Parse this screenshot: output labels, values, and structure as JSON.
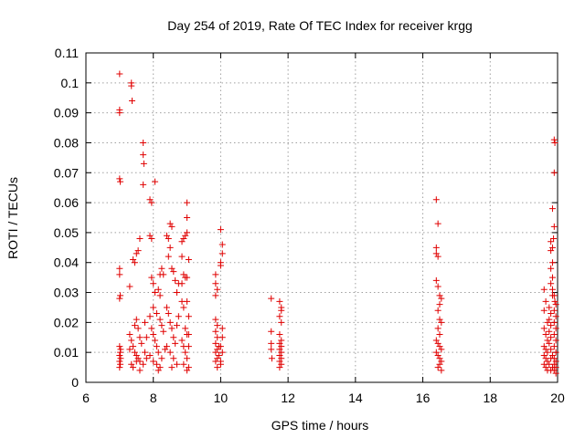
{
  "chart_data": {
    "type": "scatter",
    "title": "Day 254 of 2019, Rate Of TEC Index for receiver krgg",
    "xlabel": "GPS time / hours",
    "ylabel": "ROTI / TECUs",
    "xlim": [
      6,
      20
    ],
    "ylim": [
      0,
      0.11
    ],
    "xticks": [
      6,
      8,
      10,
      12,
      14,
      16,
      18,
      20
    ],
    "yticks": [
      0,
      0.01,
      0.02,
      0.03,
      0.04,
      0.05,
      0.06,
      0.07,
      0.08,
      0.09,
      0.1,
      0.11
    ],
    "grid": true,
    "marker": "+",
    "color": "#e00000",
    "series": [
      {
        "name": "ROTI",
        "points": [
          [
            7.0,
            0.103
          ],
          [
            7.0,
            0.091
          ],
          [
            7.0,
            0.09
          ],
          [
            7.0,
            0.068
          ],
          [
            7.02,
            0.067
          ],
          [
            7.0,
            0.038
          ],
          [
            7.0,
            0.036
          ],
          [
            7.02,
            0.029
          ],
          [
            7.0,
            0.028
          ],
          [
            7.0,
            0.012
          ],
          [
            7.02,
            0.01
          ],
          [
            7.0,
            0.009
          ],
          [
            7.03,
            0.008
          ],
          [
            7.0,
            0.007
          ],
          [
            7.02,
            0.006
          ],
          [
            7.0,
            0.005
          ],
          [
            7.03,
            0.011
          ],
          [
            7.35,
            0.1
          ],
          [
            7.35,
            0.099
          ],
          [
            7.37,
            0.094
          ],
          [
            7.3,
            0.032
          ],
          [
            7.4,
            0.041
          ],
          [
            7.45,
            0.04
          ],
          [
            7.5,
            0.043
          ],
          [
            7.55,
            0.044
          ],
          [
            7.6,
            0.048
          ],
          [
            7.3,
            0.016
          ],
          [
            7.35,
            0.014
          ],
          [
            7.4,
            0.012
          ],
          [
            7.45,
            0.01
          ],
          [
            7.5,
            0.009
          ],
          [
            7.55,
            0.008
          ],
          [
            7.6,
            0.007
          ],
          [
            7.35,
            0.006
          ],
          [
            7.4,
            0.005
          ],
          [
            7.45,
            0.019
          ],
          [
            7.5,
            0.021
          ],
          [
            7.55,
            0.018
          ],
          [
            7.6,
            0.015
          ],
          [
            7.65,
            0.013
          ],
          [
            7.3,
            0.011
          ],
          [
            7.5,
            0.007
          ],
          [
            7.6,
            0.004
          ],
          [
            7.7,
            0.006
          ],
          [
            7.7,
            0.08
          ],
          [
            7.7,
            0.076
          ],
          [
            7.72,
            0.073
          ],
          [
            7.7,
            0.066
          ],
          [
            7.75,
            0.02
          ],
          [
            7.8,
            0.015
          ],
          [
            7.75,
            0.01
          ],
          [
            7.8,
            0.008
          ],
          [
            7.9,
            0.061
          ],
          [
            7.95,
            0.06
          ],
          [
            8.05,
            0.067
          ],
          [
            7.9,
            0.049
          ],
          [
            7.95,
            0.048
          ],
          [
            7.95,
            0.035
          ],
          [
            8.0,
            0.033
          ],
          [
            8.05,
            0.03
          ],
          [
            7.9,
            0.022
          ],
          [
            7.95,
            0.018
          ],
          [
            8.0,
            0.016
          ],
          [
            8.05,
            0.014
          ],
          [
            8.1,
            0.012
          ],
          [
            8.15,
            0.01
          ],
          [
            7.9,
            0.009
          ],
          [
            8.0,
            0.007
          ],
          [
            8.1,
            0.006
          ],
          [
            8.2,
            0.005
          ],
          [
            8.0,
            0.025
          ],
          [
            8.1,
            0.023
          ],
          [
            8.2,
            0.021
          ],
          [
            8.25,
            0.019
          ],
          [
            8.3,
            0.017
          ],
          [
            8.35,
            0.011
          ],
          [
            8.25,
            0.008
          ],
          [
            8.15,
            0.004
          ],
          [
            8.2,
            0.036
          ],
          [
            8.25,
            0.038
          ],
          [
            8.3,
            0.036
          ],
          [
            8.15,
            0.031
          ],
          [
            8.2,
            0.029
          ],
          [
            8.4,
            0.049
          ],
          [
            8.45,
            0.048
          ],
          [
            8.5,
            0.053
          ],
          [
            8.55,
            0.052
          ],
          [
            8.5,
            0.045
          ],
          [
            8.45,
            0.042
          ],
          [
            8.55,
            0.038
          ],
          [
            8.6,
            0.037
          ],
          [
            8.4,
            0.025
          ],
          [
            8.45,
            0.023
          ],
          [
            8.5,
            0.02
          ],
          [
            8.55,
            0.018
          ],
          [
            8.6,
            0.015
          ],
          [
            8.65,
            0.013
          ],
          [
            8.4,
            0.012
          ],
          [
            8.5,
            0.01
          ],
          [
            8.6,
            0.008
          ],
          [
            8.7,
            0.006
          ],
          [
            8.55,
            0.005
          ],
          [
            8.7,
            0.03
          ],
          [
            8.75,
            0.033
          ],
          [
            8.65,
            0.034
          ],
          [
            8.75,
            0.022
          ],
          [
            8.7,
            0.019
          ],
          [
            8.85,
            0.047
          ],
          [
            8.9,
            0.048
          ],
          [
            8.95,
            0.049
          ],
          [
            8.85,
            0.042
          ],
          [
            8.9,
            0.036
          ],
          [
            8.95,
            0.035
          ],
          [
            8.85,
            0.033
          ],
          [
            8.85,
            0.027
          ],
          [
            8.9,
            0.025
          ],
          [
            8.95,
            0.018
          ],
          [
            9.0,
            0.016
          ],
          [
            8.85,
            0.014
          ],
          [
            8.9,
            0.012
          ],
          [
            8.95,
            0.01
          ],
          [
            9.0,
            0.008
          ],
          [
            8.9,
            0.006
          ],
          [
            9.0,
            0.004
          ],
          [
            9.0,
            0.06
          ],
          [
            9.0,
            0.055
          ],
          [
            9.0,
            0.05
          ],
          [
            9.05,
            0.041
          ],
          [
            9.0,
            0.035
          ],
          [
            9.0,
            0.027
          ],
          [
            9.05,
            0.022
          ],
          [
            9.05,
            0.016
          ],
          [
            9.05,
            0.012
          ],
          [
            9.05,
            0.005
          ],
          [
            9.85,
            0.036
          ],
          [
            9.85,
            0.033
          ],
          [
            9.9,
            0.031
          ],
          [
            9.85,
            0.029
          ],
          [
            9.85,
            0.021
          ],
          [
            9.9,
            0.019
          ],
          [
            9.85,
            0.017
          ],
          [
            9.9,
            0.015
          ],
          [
            9.85,
            0.013
          ],
          [
            9.9,
            0.011
          ],
          [
            9.85,
            0.01
          ],
          [
            9.9,
            0.008
          ],
          [
            9.85,
            0.007
          ],
          [
            9.9,
            0.005
          ],
          [
            9.95,
            0.012
          ],
          [
            9.95,
            0.009
          ],
          [
            10.0,
            0.051
          ],
          [
            10.05,
            0.046
          ],
          [
            10.05,
            0.043
          ],
          [
            10.0,
            0.04
          ],
          [
            10.0,
            0.039
          ],
          [
            10.05,
            0.018
          ],
          [
            10.05,
            0.015
          ],
          [
            10.0,
            0.012
          ],
          [
            10.05,
            0.01
          ],
          [
            10.0,
            0.007
          ],
          [
            10.0,
            0.006
          ],
          [
            11.5,
            0.028
          ],
          [
            11.5,
            0.017
          ],
          [
            11.5,
            0.013
          ],
          [
            11.5,
            0.011
          ],
          [
            11.52,
            0.008
          ],
          [
            11.75,
            0.027
          ],
          [
            11.8,
            0.025
          ],
          [
            11.8,
            0.024
          ],
          [
            11.75,
            0.022
          ],
          [
            11.8,
            0.02
          ],
          [
            11.75,
            0.016
          ],
          [
            11.8,
            0.014
          ],
          [
            11.75,
            0.013
          ],
          [
            11.8,
            0.012
          ],
          [
            11.75,
            0.011
          ],
          [
            11.8,
            0.01
          ],
          [
            11.75,
            0.009
          ],
          [
            11.8,
            0.008
          ],
          [
            11.75,
            0.007
          ],
          [
            11.8,
            0.006
          ],
          [
            11.75,
            0.005
          ],
          [
            16.4,
            0.061
          ],
          [
            16.45,
            0.053
          ],
          [
            16.4,
            0.045
          ],
          [
            16.4,
            0.043
          ],
          [
            16.45,
            0.042
          ],
          [
            16.4,
            0.034
          ],
          [
            16.45,
            0.032
          ],
          [
            16.5,
            0.029
          ],
          [
            16.55,
            0.028
          ],
          [
            16.5,
            0.026
          ],
          [
            16.45,
            0.024
          ],
          [
            16.5,
            0.021
          ],
          [
            16.55,
            0.02
          ],
          [
            16.45,
            0.018
          ],
          [
            16.5,
            0.016
          ],
          [
            16.4,
            0.014
          ],
          [
            16.45,
            0.013
          ],
          [
            16.5,
            0.012
          ],
          [
            16.55,
            0.011
          ],
          [
            16.4,
            0.01
          ],
          [
            16.45,
            0.009
          ],
          [
            16.5,
            0.008
          ],
          [
            16.55,
            0.007
          ],
          [
            16.5,
            0.006
          ],
          [
            16.45,
            0.005
          ],
          [
            16.55,
            0.004
          ],
          [
            19.6,
            0.031
          ],
          [
            19.65,
            0.027
          ],
          [
            19.6,
            0.024
          ],
          [
            19.7,
            0.02
          ],
          [
            19.6,
            0.018
          ],
          [
            19.65,
            0.016
          ],
          [
            19.7,
            0.014
          ],
          [
            19.6,
            0.012
          ],
          [
            19.65,
            0.011
          ],
          [
            19.7,
            0.01
          ],
          [
            19.6,
            0.009
          ],
          [
            19.65,
            0.008
          ],
          [
            19.7,
            0.007
          ],
          [
            19.6,
            0.006
          ],
          [
            19.65,
            0.005
          ],
          [
            19.7,
            0.004
          ],
          [
            19.75,
            0.025
          ],
          [
            19.8,
            0.023
          ],
          [
            19.75,
            0.021
          ],
          [
            19.8,
            0.019
          ],
          [
            19.75,
            0.017
          ],
          [
            19.8,
            0.015
          ],
          [
            19.75,
            0.013
          ],
          [
            19.8,
            0.011
          ],
          [
            19.85,
            0.009
          ],
          [
            19.8,
            0.008
          ],
          [
            19.75,
            0.006
          ],
          [
            19.85,
            0.005
          ],
          [
            19.8,
            0.004
          ],
          [
            19.8,
            0.047
          ],
          [
            19.85,
            0.045
          ],
          [
            19.8,
            0.044
          ],
          [
            19.85,
            0.04
          ],
          [
            19.8,
            0.038
          ],
          [
            19.85,
            0.035
          ],
          [
            19.8,
            0.033
          ],
          [
            19.85,
            0.031
          ],
          [
            19.85,
            0.029
          ],
          [
            19.85,
            0.058
          ],
          [
            19.9,
            0.052
          ],
          [
            19.88,
            0.048
          ],
          [
            19.9,
            0.081
          ],
          [
            19.92,
            0.08
          ],
          [
            19.9,
            0.07
          ],
          [
            19.9,
            0.029
          ],
          [
            19.92,
            0.027
          ],
          [
            19.95,
            0.026
          ],
          [
            19.9,
            0.024
          ],
          [
            19.95,
            0.022
          ],
          [
            19.9,
            0.02
          ],
          [
            19.95,
            0.018
          ],
          [
            19.9,
            0.016
          ],
          [
            19.95,
            0.014
          ],
          [
            19.9,
            0.012
          ],
          [
            19.95,
            0.01
          ],
          [
            19.9,
            0.008
          ],
          [
            19.95,
            0.007
          ],
          [
            19.9,
            0.006
          ],
          [
            19.95,
            0.005
          ],
          [
            19.9,
            0.004
          ],
          [
            19.95,
            0.003
          ]
        ]
      }
    ]
  }
}
